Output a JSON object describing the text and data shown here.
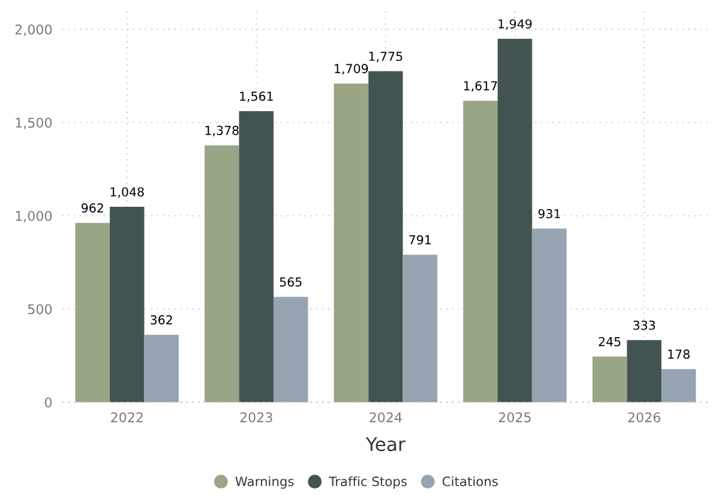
{
  "chart_data": {
    "type": "bar",
    "xlabel": "Year",
    "categories": [
      "2022",
      "2023",
      "2024",
      "2025",
      "2026"
    ],
    "series": [
      {
        "name": "Warnings",
        "color": "#98a686",
        "values": [
          962,
          1378,
          1709,
          1617,
          245
        ],
        "value_labels": [
          "962",
          "1,378",
          "1,709",
          "1,617",
          "245"
        ]
      },
      {
        "name": "Traffic Stops",
        "color": "#425452",
        "values": [
          1048,
          1561,
          1775,
          1949,
          333
        ],
        "value_labels": [
          "1,048",
          "1,561",
          "1,775",
          "1,949",
          "333"
        ]
      },
      {
        "name": "Citations",
        "color": "#95a4b0",
        "values": [
          362,
          565,
          791,
          931,
          178
        ],
        "value_labels": [
          "362",
          "565",
          "791",
          "931",
          "178"
        ]
      }
    ],
    "ylim": [
      0,
      2100
    ],
    "yticks": [
      0,
      500,
      {
        "value": 1000,
        "label": "1,000"
      },
      {
        "value": 1500,
        "label": "1,500"
      },
      {
        "value": 2000,
        "label": "2,000"
      }
    ],
    "grid": true,
    "legend": "bottom"
  }
}
